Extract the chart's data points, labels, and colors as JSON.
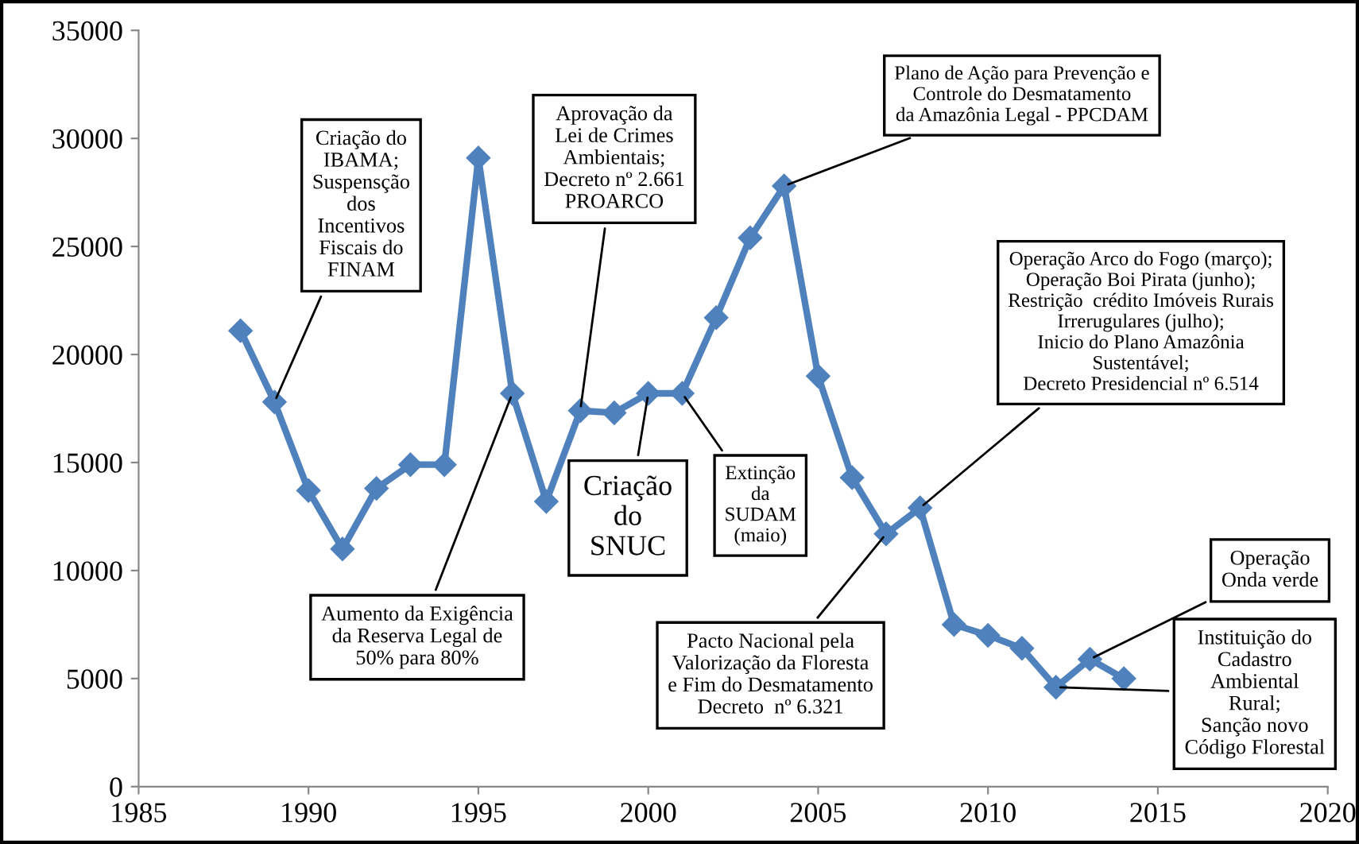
{
  "chart_data": {
    "type": "line",
    "x": [
      1988,
      1989,
      1990,
      1991,
      1992,
      1993,
      1994,
      1995,
      1996,
      1997,
      1998,
      1999,
      2000,
      2001,
      2002,
      2003,
      2004,
      2005,
      2006,
      2007,
      2008,
      2009,
      2010,
      2011,
      2012,
      2013,
      2014
    ],
    "series": [
      {
        "color": "#4f81bd",
        "values": [
          21100,
          17800,
          13700,
          11000,
          13800,
          14900,
          14900,
          29100,
          18200,
          13200,
          17400,
          17300,
          18200,
          18200,
          21700,
          25400,
          27800,
          19000,
          14300,
          11700,
          12900,
          7500,
          7000,
          6400,
          4600,
          5900,
          5000
        ]
      }
    ],
    "marker": "diamond",
    "line_style": "solid",
    "grid": false,
    "xlim": [
      1985,
      2020
    ],
    "xticks": [
      1985,
      1990,
      1995,
      2000,
      2005,
      2010,
      2015,
      2020
    ],
    "ylim": [
      0,
      35000
    ],
    "yticks": [
      0,
      5000,
      10000,
      15000,
      20000,
      25000,
      30000,
      35000
    ],
    "annotations": [
      {
        "text": "Criação do\nIBAMA;\nSuspensção\ndos\nIncentivos\nFiscais do\nFINAM",
        "x": 1989,
        "y": 17800
      },
      {
        "text": "Aprovação da\nLei de Crimes\nAmbientais;\nDecreto nº 2.661\nPROARCO",
        "x": 1998,
        "y": 17400
      },
      {
        "text": "Plano de Ação para Prevenção e\nControle do Desmatamento\nda Amazônia Legal - PPCDAM",
        "x": 2004,
        "y": 27800
      },
      {
        "text": "Operação Arco do Fogo (março);\nOperação Boi Pirata (junho);\nRestrição  crédito Imóveis Rurais\nIrrerugulares (julho);\nInicio do Plano Amazônia\nSustentável;\nDecreto Presidencial nº 6.514",
        "x": 2008,
        "y": 12900
      },
      {
        "text": "Criação\ndo\nSNUC",
        "x": 2000,
        "y": 18200
      },
      {
        "text": "Extinção\nda\nSUDAM\n(maio)",
        "x": 2001,
        "y": 18200
      },
      {
        "text": "Aumento da Exigência\nda Reserva Legal de\n50% para 80%",
        "x": 1996,
        "y": 18200
      },
      {
        "text": "Pacto Nacional pela\nValorização da Floresta\ne Fim do Desmatamento\nDecreto  nº 6.321",
        "x": 2007,
        "y": 11700
      },
      {
        "text": "Operação\nOnda verde",
        "x": 2013,
        "y": 5900
      },
      {
        "text": "Instituição do\nCadastro\nAmbiental\nRural;\nSanção novo\nCódigo Florestal",
        "x": 2012,
        "y": 4600
      }
    ]
  }
}
